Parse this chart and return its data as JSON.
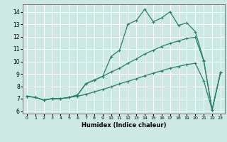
{
  "title": "",
  "xlabel": "Humidex (Indice chaleur)",
  "xlim": [
    -0.5,
    23.5
  ],
  "ylim": [
    5.8,
    14.6
  ],
  "yticks": [
    6,
    7,
    8,
    9,
    10,
    11,
    12,
    13,
    14
  ],
  "xticks": [
    0,
    1,
    2,
    3,
    4,
    5,
    6,
    7,
    8,
    9,
    10,
    11,
    12,
    13,
    14,
    15,
    16,
    17,
    18,
    19,
    20,
    21,
    22,
    23
  ],
  "bg_color": "#cce9e4",
  "grid_color": "#ffffff",
  "line_color": "#2e7d6e",
  "line1_y": [
    7.2,
    7.1,
    6.9,
    7.0,
    7.0,
    7.1,
    7.3,
    8.2,
    8.5,
    8.8,
    10.4,
    10.9,
    13.0,
    13.3,
    14.2,
    13.2,
    13.5,
    14.0,
    12.9,
    13.1,
    12.4,
    10.1,
    6.1,
    9.1
  ],
  "line2_y": [
    7.2,
    7.1,
    6.9,
    7.0,
    7.0,
    7.1,
    7.2,
    7.35,
    7.55,
    7.75,
    7.95,
    8.2,
    8.4,
    8.6,
    8.85,
    9.05,
    9.25,
    9.45,
    9.6,
    9.75,
    9.85,
    8.45,
    6.1,
    9.1
  ],
  "line3_y": [
    7.2,
    7.1,
    6.9,
    7.0,
    7.0,
    7.1,
    7.3,
    8.2,
    8.5,
    8.8,
    9.15,
    9.45,
    9.85,
    10.2,
    10.6,
    10.9,
    11.2,
    11.45,
    11.65,
    11.85,
    11.95,
    10.05,
    6.1,
    9.1
  ]
}
